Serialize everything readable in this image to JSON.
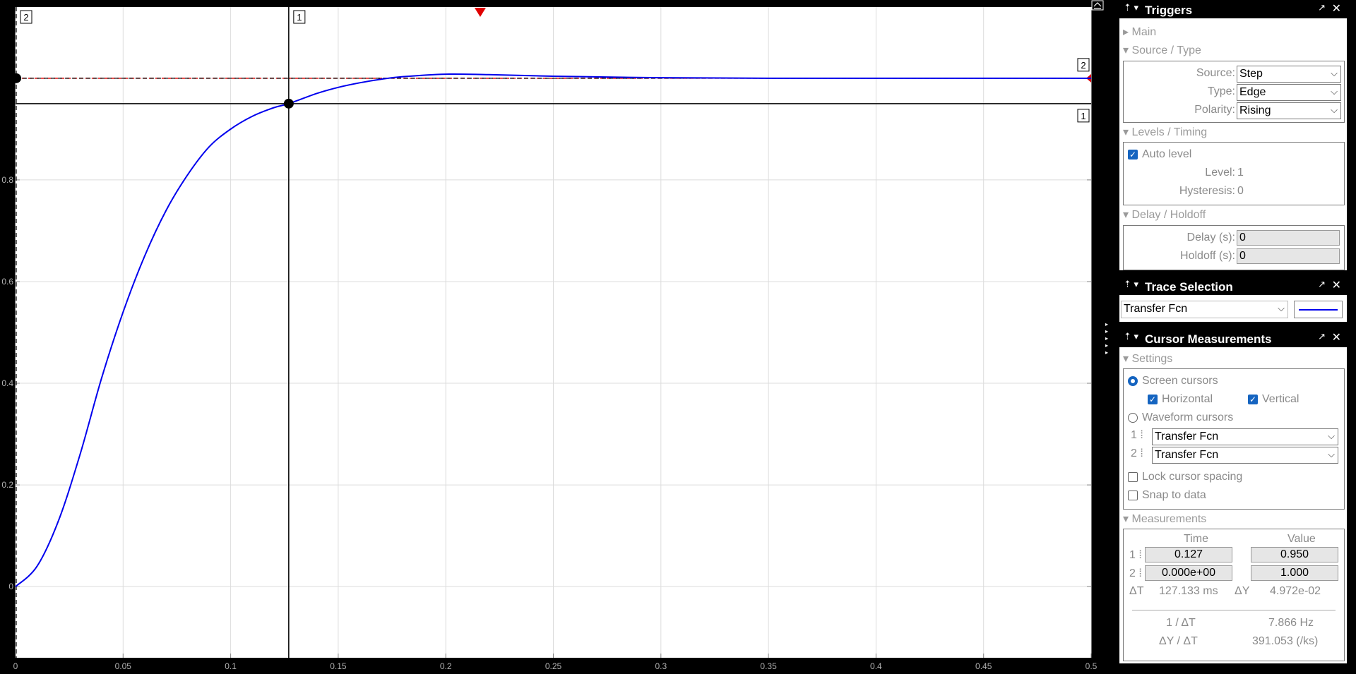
{
  "chart_data": {
    "type": "line",
    "xlim": [
      0,
      0.5
    ],
    "ylim": [
      -0.14,
      1.14
    ],
    "x_ticks": [
      0,
      0.05,
      0.1,
      0.15,
      0.2,
      0.25,
      0.3,
      0.35,
      0.4,
      0.45,
      0.5
    ],
    "x_tick_labels": [
      "0",
      "0.05",
      "0.1",
      "0.15",
      "0.2",
      "0.25",
      "0.3",
      "0.35",
      "0.4",
      "0.45",
      "0.5"
    ],
    "y_ticks": [
      0,
      0.2,
      0.4,
      0.6,
      0.8,
      1.0
    ],
    "y_tick_labels": [
      "0",
      "0.2",
      "0.4",
      "0.6",
      "0.8",
      ""
    ],
    "grid": true,
    "background": "#ffffff",
    "series": [
      {
        "color": "#0000ee",
        "x": [
          0,
          0.01,
          0.02,
          0.03,
          0.04,
          0.05,
          0.06,
          0.07,
          0.08,
          0.09,
          0.1,
          0.11,
          0.12,
          0.127,
          0.14,
          0.15,
          0.16,
          0.17,
          0.18,
          0.2,
          0.22,
          0.25,
          0.3,
          0.35,
          0.4,
          0.45,
          0.5
        ],
        "y": [
          0,
          0.04,
          0.13,
          0.26,
          0.41,
          0.54,
          0.65,
          0.74,
          0.81,
          0.865,
          0.9,
          0.925,
          0.942,
          0.95,
          0.97,
          0.982,
          0.991,
          0.998,
          1.003,
          1.008,
          1.007,
          1.004,
          1.001,
          1.0,
          1.0,
          1.0,
          1.0
        ]
      }
    ],
    "trigger_level": 1.0,
    "trigger_time": 0.216,
    "cursors": [
      {
        "id": "1",
        "time": 0.127,
        "value": 0.95
      },
      {
        "id": "2",
        "time": 0.0,
        "value": 1.0
      }
    ],
    "cursor_labels": {
      "v1": "1",
      "v2": "2",
      "h1": "1",
      "h2": "2"
    }
  },
  "colors": {
    "trace": "#0000ee",
    "trigger": "#e00000",
    "accent": "#1564c0"
  },
  "triggers": {
    "title": "Triggers",
    "main": "Main",
    "source_type": "Source / Type",
    "source_label": "Source:",
    "source": "Step",
    "type_label": "Type:",
    "type": "Edge",
    "polarity_label": "Polarity:",
    "polarity": "Rising",
    "levels_timing": "Levels / Timing",
    "auto_level": "Auto level",
    "level_label": "Level:",
    "level": "1",
    "hysteresis_label": "Hysteresis:",
    "hysteresis": "0",
    "delay_holdoff": "Delay / Holdoff",
    "delay_label": "Delay (s):",
    "delay": "0",
    "holdoff_label": "Holdoff (s):",
    "holdoff": "0"
  },
  "trace_selection": {
    "title": "Trace Selection",
    "selected": "Transfer Fcn"
  },
  "cursor_measurements": {
    "title": "Cursor Measurements",
    "settings": "Settings",
    "screen_cursors": "Screen cursors",
    "horizontal": "Horizontal",
    "vertical": "Vertical",
    "waveform_cursors": "Waveform cursors",
    "c1": "1",
    "c2": "2",
    "c1_signal": "Transfer Fcn",
    "c2_signal": "Transfer Fcn",
    "lock_spacing": "Lock cursor spacing",
    "snap_to_data": "Snap to data",
    "measurements": "Measurements",
    "time_header": "Time",
    "value_header": "Value",
    "t1": "0.127",
    "v1": "0.950",
    "t2": "0.000e+00",
    "v2": "1.000",
    "dt_label": "ΔT",
    "dt": "127.133 ms",
    "dy_label": "ΔY",
    "dy": "4.972e-02",
    "inv_dt_label": "1 / ΔT",
    "inv_dt": "7.866 Hz",
    "dy_dt_label": "ΔY / ΔT",
    "dy_dt": "391.053 (/ks)"
  }
}
